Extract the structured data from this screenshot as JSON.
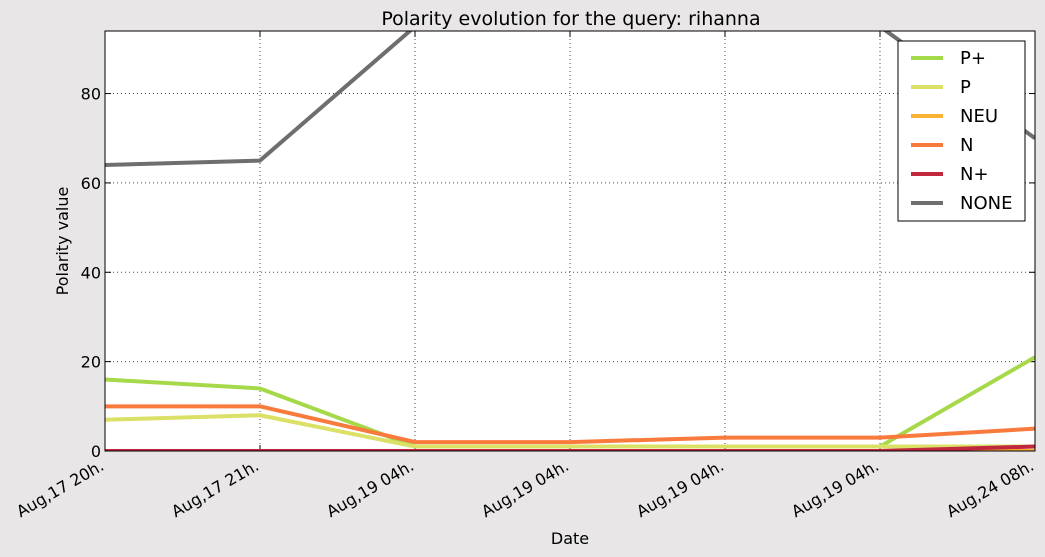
{
  "chart_data": {
    "type": "line",
    "title": "Polarity evolution for the query: rihanna",
    "xlabel": "Date",
    "ylabel": "Polarity value",
    "categories": [
      "Aug,17 20h.",
      "Aug,17 21h.",
      "Aug,19 04h.",
      "Aug,19 04h.",
      "Aug,19 04h.",
      "Aug,19 04h.",
      "Aug,24 08h."
    ],
    "ylim": [
      0,
      94
    ],
    "yticks": [
      0,
      20,
      40,
      60,
      80
    ],
    "grid": true,
    "legend_position": "top-right",
    "series": [
      {
        "name": "P+",
        "color": "#a6d94a",
        "values": [
          16,
          14,
          1,
          1,
          1,
          1,
          21
        ]
      },
      {
        "name": "P",
        "color": "#dbe066",
        "values": [
          7,
          8,
          1,
          1,
          1,
          1,
          1
        ]
      },
      {
        "name": "NEU",
        "color": "#f9b233",
        "values": [
          0,
          0,
          0,
          0,
          0,
          0,
          0
        ]
      },
      {
        "name": "N",
        "color": "#f97a3d",
        "values": [
          10,
          10,
          2,
          2,
          3,
          3,
          5
        ]
      },
      {
        "name": "N+",
        "color": "#c1273f",
        "values": [
          0,
          0,
          0,
          0,
          0,
          0,
          1
        ]
      },
      {
        "name": "NONE",
        "color": "#6e6e6e",
        "values": [
          64,
          65,
          95,
          95,
          95,
          95,
          70
        ]
      }
    ]
  }
}
